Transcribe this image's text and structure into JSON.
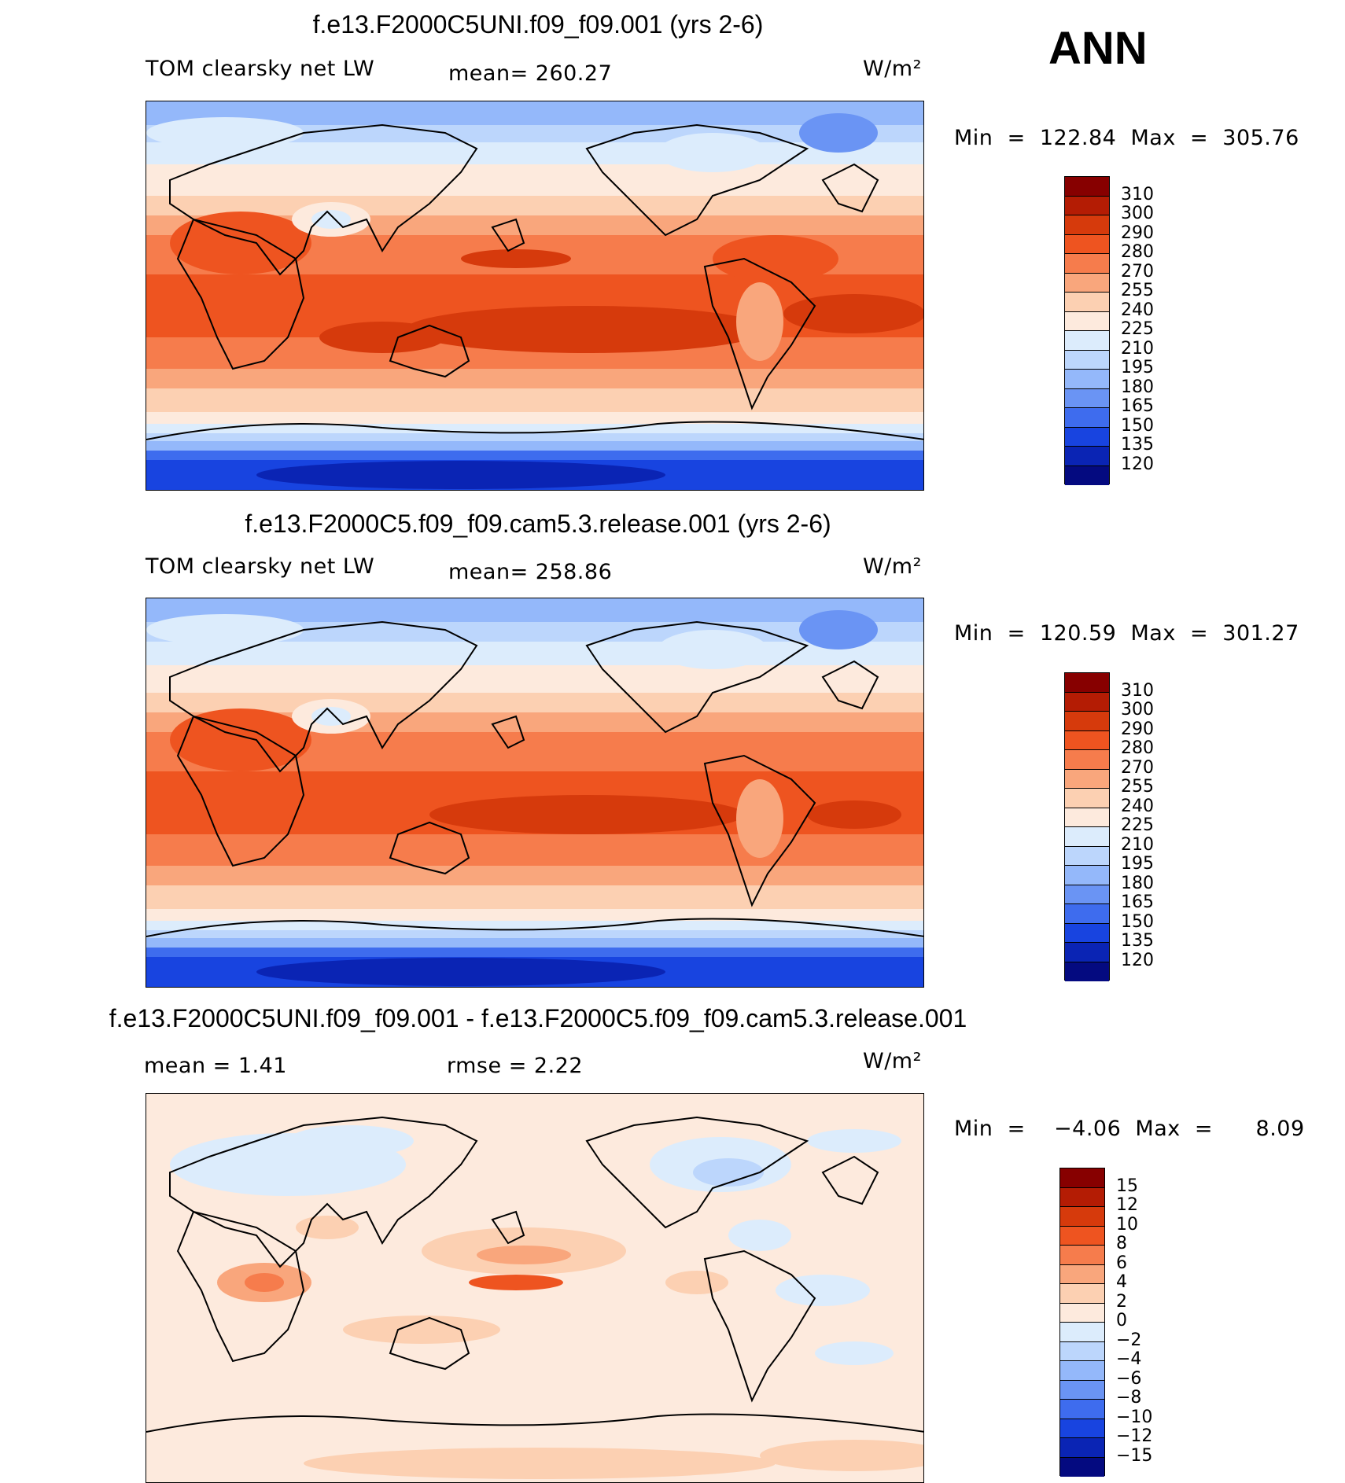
{
  "header": {
    "season": "ANN"
  },
  "panels": [
    {
      "title": "f.e13.F2000C5UNI.f09_f09.001 (yrs 2-6)",
      "left_label": "TOM clearsky net LW",
      "center_label": "mean=  260.27",
      "units": "W/m²",
      "minmax": "Min  =  122.84  Max  =  305.76",
      "colorbar_labels": [
        "310",
        "300",
        "290",
        "280",
        "270",
        "255",
        "240",
        "225",
        "210",
        "195",
        "180",
        "165",
        "150",
        "135",
        "120"
      ]
    },
    {
      "title": "f.e13.F2000C5.f09_f09.cam5.3.release.001 (yrs 2-6)",
      "left_label": "TOM clearsky net LW",
      "center_label": "mean=  258.86",
      "units": "W/m²",
      "minmax": "Min  =  120.59  Max  =  301.27",
      "colorbar_labels": [
        "310",
        "300",
        "290",
        "280",
        "270",
        "255",
        "240",
        "225",
        "210",
        "195",
        "180",
        "165",
        "150",
        "135",
        "120"
      ]
    },
    {
      "title": "f.e13.F2000C5UNI.f09_f09.001 - f.e13.F2000C5.f09_f09.cam5.3.release.001",
      "left_label": "mean  =     1.41",
      "center_label": "rmse  =     2.22",
      "units": "W/m²",
      "minmax": "Min  =    −4.06  Max  =      8.09",
      "colorbar_labels": [
        "15",
        "12",
        "10",
        "8",
        "6",
        "4",
        "2",
        "0",
        "−2",
        "−4",
        "−6",
        "−8",
        "−10",
        "−12",
        "−15"
      ]
    }
  ],
  "colors": {
    "abs_scale": [
      "#870000",
      "#b41c04",
      "#d63a0c",
      "#ee5420",
      "#f67c4c",
      "#f9a67c",
      "#fcd0b2",
      "#fdeadd",
      "#dcecfc",
      "#bcd6fc",
      "#94b8fa",
      "#6a94f4",
      "#3e6cee",
      "#1844e0",
      "#0a24b4",
      "#040a80"
    ],
    "diff_scale": [
      "#870000",
      "#b41c04",
      "#d63a0c",
      "#ee5420",
      "#f67c4c",
      "#f9a67c",
      "#fcd0b2",
      "#fdeadd",
      "#dcecfc",
      "#bcd6fc",
      "#94b8fa",
      "#6a94f4",
      "#3e6cee",
      "#1844e0",
      "#0a24b4",
      "#040a80"
    ]
  }
}
